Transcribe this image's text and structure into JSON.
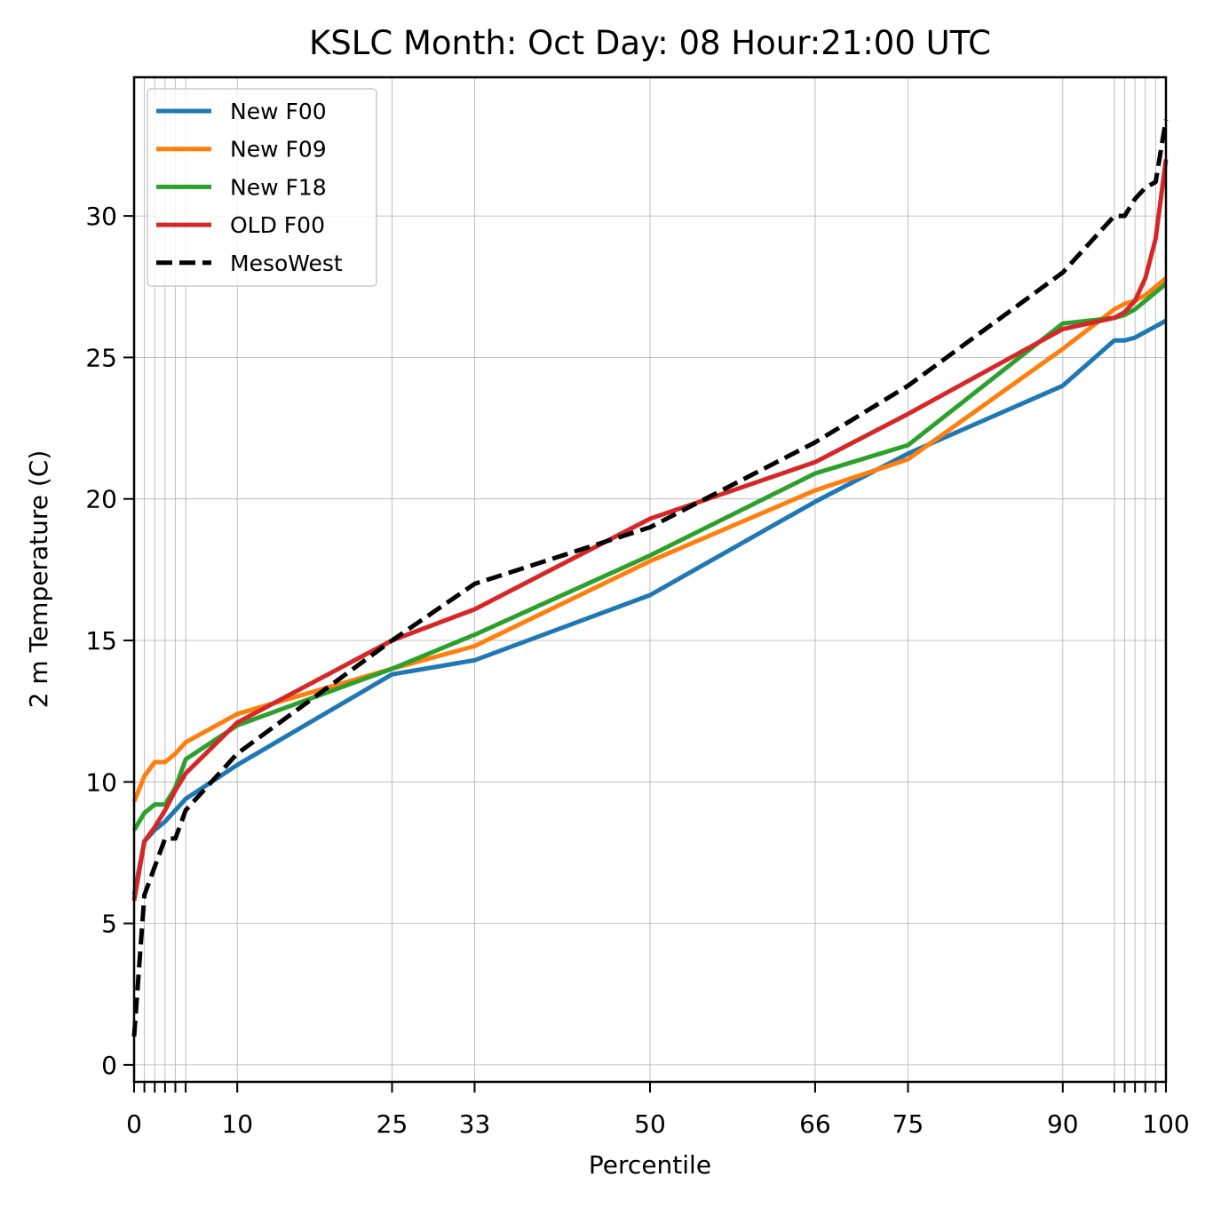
{
  "chart_data": {
    "type": "line",
    "title": "KSLC Month: Oct  Day: 08  Hour:21:00 UTC",
    "xlabel": "Percentile",
    "ylabel": "2 m Temperature (C)",
    "xlim": [
      0,
      100
    ],
    "ylim": [
      -0.6,
      34.9
    ],
    "xticks": [
      0,
      10,
      25,
      33,
      50,
      66,
      75,
      90,
      100
    ],
    "xticks_minor": [
      1,
      2,
      3,
      4,
      5,
      95,
      96,
      97,
      98,
      99
    ],
    "yticks": [
      0,
      5,
      10,
      15,
      20,
      25,
      30
    ],
    "grid": true,
    "legend_position": "upper-left",
    "series": [
      {
        "name": "New F00",
        "color": "#1f77b4",
        "style": "solid",
        "x": [
          0,
          1,
          2,
          3,
          4,
          5,
          10,
          25,
          33,
          50,
          66,
          75,
          90,
          95,
          96,
          97,
          98,
          99,
          100
        ],
        "y": [
          6.0,
          7.9,
          8.3,
          8.6,
          9.0,
          9.4,
          10.6,
          13.8,
          14.3,
          16.6,
          19.9,
          21.6,
          24.0,
          25.6,
          25.6,
          25.7,
          25.9,
          26.1,
          26.3
        ]
      },
      {
        "name": "New F09",
        "color": "#ff7f0e",
        "style": "solid",
        "x": [
          0,
          1,
          2,
          3,
          4,
          5,
          10,
          25,
          33,
          50,
          66,
          75,
          90,
          95,
          96,
          97,
          98,
          99,
          100
        ],
        "y": [
          9.3,
          10.2,
          10.7,
          10.7,
          11.0,
          11.4,
          12.4,
          14.0,
          14.8,
          17.8,
          20.3,
          21.4,
          25.3,
          26.7,
          26.9,
          27.0,
          27.2,
          27.5,
          27.8
        ]
      },
      {
        "name": "New F18",
        "color": "#2ca02c",
        "style": "solid",
        "x": [
          0,
          1,
          2,
          3,
          4,
          5,
          10,
          25,
          33,
          50,
          66,
          75,
          90,
          95,
          96,
          97,
          98,
          99,
          100
        ],
        "y": [
          8.3,
          8.9,
          9.2,
          9.2,
          9.8,
          10.8,
          12.0,
          14.0,
          15.2,
          18.0,
          20.9,
          21.9,
          26.2,
          26.4,
          26.5,
          26.7,
          27.0,
          27.3,
          27.6
        ]
      },
      {
        "name": "OLD F00",
        "color": "#d62728",
        "style": "solid",
        "x": [
          0,
          1,
          2,
          3,
          4,
          5,
          10,
          25,
          33,
          50,
          66,
          75,
          90,
          95,
          96,
          97,
          98,
          99,
          100
        ],
        "y": [
          5.8,
          7.9,
          8.4,
          9.0,
          9.7,
          10.3,
          12.1,
          15.0,
          16.1,
          19.3,
          21.3,
          23.0,
          26.0,
          26.4,
          26.6,
          27.0,
          27.8,
          29.2,
          32.0
        ]
      },
      {
        "name": "MesoWest",
        "color": "#000000",
        "style": "dashed",
        "x": [
          0,
          1,
          2,
          3,
          4,
          5,
          10,
          25,
          33,
          50,
          66,
          75,
          90,
          95,
          96,
          97,
          98,
          99,
          100
        ],
        "y": [
          1.0,
          6.0,
          7.0,
          8.0,
          8.0,
          9.0,
          11.0,
          15.0,
          17.0,
          19.0,
          22.0,
          24.0,
          28.0,
          30.0,
          30.0,
          30.6,
          31.0,
          31.2,
          33.4
        ]
      }
    ]
  }
}
